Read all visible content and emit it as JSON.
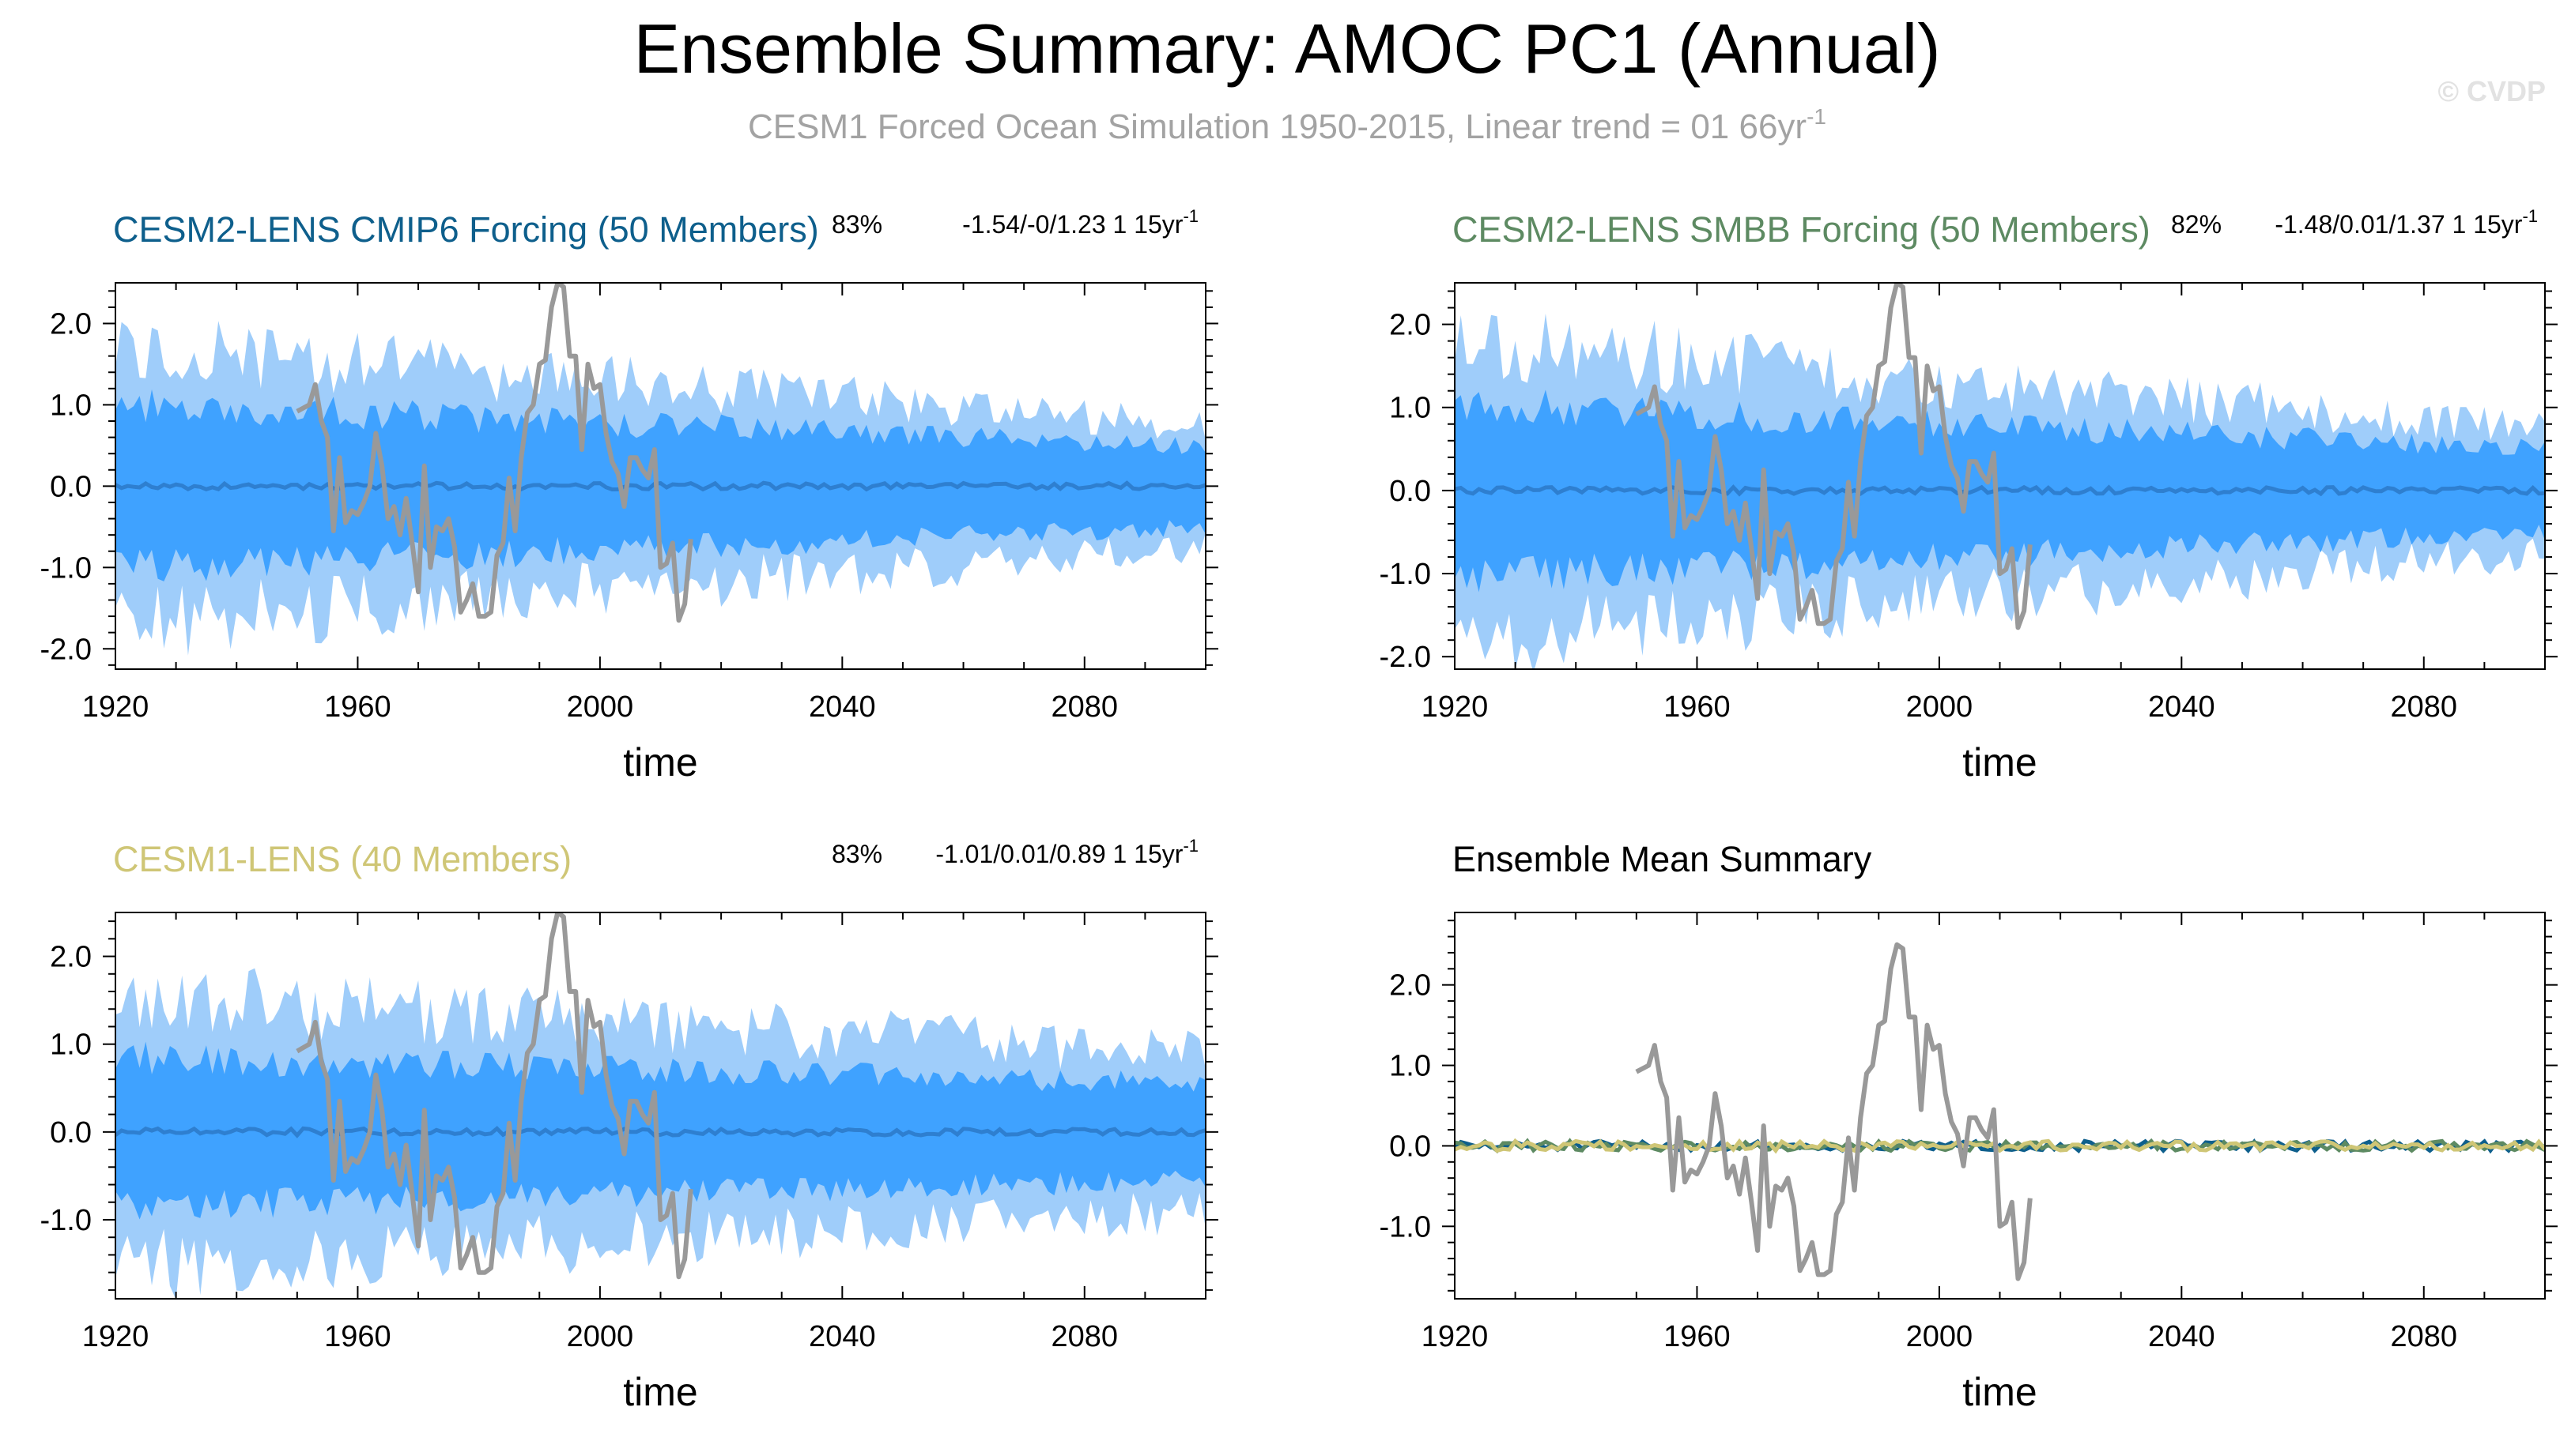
{
  "title": "Ensemble Summary: AMOC PC1 (Annual)",
  "subtitle": "CESM1 Forced Ocean Simulation 1950-2015, Linear trend = 01 66yr",
  "subtitle_sup": "-1",
  "watermark": "© CVDP",
  "colors": {
    "outer_band": "#9fcdfa",
    "inner_band": "#3fa2ff",
    "ens_mean": "#2e7fd0",
    "obs": "#999999",
    "cmip6": "#0e5f8c",
    "smbb": "#5d8a62",
    "cesm1": "#cfc676",
    "frame": "#000000"
  },
  "chart_data": [
    {
      "id": "panel-cmip6",
      "type": "area",
      "title": "CESM2-LENS CMIP6 Forcing (50 Members)",
      "title_color": "#0e5f8c",
      "pct": "83%",
      "stats": "-1.54/-0/1.23 1 15yr",
      "stats_sup": "-1",
      "xlabel": "time",
      "xlim": [
        1920,
        2100
      ],
      "ylim": [
        -2.25,
        2.5
      ],
      "xticks": [
        1920,
        1960,
        2000,
        2040,
        2080
      ],
      "yticks": [
        -2.0,
        -1.0,
        0.0,
        1.0,
        2.0
      ],
      "ytick_labels": [
        "-2.0",
        "-1.0",
        "0.0",
        "1.0",
        "2.0"
      ],
      "outer_start": 1.7,
      "outer_end": 0.75,
      "inner_start": 1.0,
      "inner_end": 0.5,
      "seed": 11
    },
    {
      "id": "panel-smbb",
      "type": "area",
      "title": "CESM2-LENS SMBB Forcing (50 Members)",
      "title_color": "#5d8a62",
      "pct": "82%",
      "stats": "-1.48/0.01/1.37 1 15yr",
      "stats_sup": "-1",
      "xlabel": "time",
      "xlim": [
        1920,
        2100
      ],
      "ylim": [
        -2.15,
        2.5
      ],
      "xticks": [
        1920,
        1960,
        2000,
        2040,
        2080
      ],
      "yticks": [
        -2.0,
        -1.0,
        0.0,
        1.0,
        2.0
      ],
      "ytick_labels": [
        "-2.0",
        "-1.0",
        "0.0",
        "1.0",
        "2.0"
      ],
      "outer_start": 1.8,
      "outer_end": 0.75,
      "inner_start": 1.05,
      "inner_end": 0.5,
      "seed": 23
    },
    {
      "id": "panel-cesm1",
      "type": "area",
      "title": "CESM1-LENS (40 Members)",
      "title_color": "#cfc676",
      "pct": "83%",
      "stats": "-1.01/0.01/0.89 1 15yr",
      "stats_sup": "-1",
      "xlabel": "time",
      "xlim": [
        1920,
        2100
      ],
      "ylim": [
        -1.9,
        2.5
      ],
      "xticks": [
        1920,
        1960,
        2000,
        2040,
        2080
      ],
      "yticks": [
        -1.0,
        0.0,
        1.0,
        2.0
      ],
      "ytick_labels": [
        "-1.0",
        "0.0",
        "1.0",
        "2.0"
      ],
      "outer_start": 1.55,
      "outer_end": 0.9,
      "inner_start": 0.85,
      "inner_end": 0.55,
      "seed": 37
    },
    {
      "id": "panel-mean",
      "type": "line",
      "title": "Ensemble Mean Summary",
      "title_color": "#000000",
      "xlabel": "time",
      "xlim": [
        1920,
        2100
      ],
      "ylim": [
        -1.9,
        2.9
      ],
      "xticks": [
        1920,
        1960,
        2000,
        2040,
        2080
      ],
      "yticks": [
        -1.0,
        0.0,
        1.0,
        2.0
      ],
      "ytick_labels": [
        "-1.0",
        "0.0",
        "1.0",
        "2.0"
      ],
      "series_names": [
        "CESM2-LENS CMIP6 Forcing",
        "CESM2-LENS SMBB Forcing",
        "CESM1-LENS"
      ],
      "seed": 51
    }
  ],
  "obs_series": {
    "name": "CESM1 Forced Ocean Simulation",
    "x": [
      1950,
      1952,
      1953,
      1954,
      1955,
      1956,
      1957,
      1958,
      1959,
      1960,
      1961,
      1962,
      1963,
      1964,
      1965,
      1966,
      1967,
      1968,
      1969,
      1970,
      1971,
      1972,
      1973,
      1974,
      1975,
      1976,
      1977,
      1978,
      1979,
      1980,
      1981,
      1982,
      1983,
      1984,
      1985,
      1986,
      1987,
      1988,
      1989,
      1990,
      1991,
      1992,
      1993,
      1994,
      1995,
      1996,
      1997,
      1998,
      1999,
      2000,
      2001,
      2002,
      2003,
      2004,
      2005,
      2006,
      2007,
      2008,
      2009,
      2010,
      2011,
      2012,
      2013,
      2014,
      2015
    ],
    "y": [
      0.92,
      1.0,
      1.25,
      0.8,
      0.6,
      -0.55,
      0.35,
      -0.45,
      -0.3,
      -0.35,
      -0.2,
      0.0,
      0.65,
      0.25,
      -0.4,
      -0.25,
      -0.6,
      -0.15,
      -0.7,
      -1.3,
      0.25,
      -1.0,
      -0.5,
      -0.55,
      -0.4,
      -0.75,
      -1.55,
      -1.4,
      -1.2,
      -1.6,
      -1.6,
      -1.55,
      -0.85,
      -0.7,
      0.1,
      -0.55,
      0.35,
      0.9,
      1.0,
      1.5,
      1.55,
      2.2,
      2.5,
      2.45,
      1.6,
      1.6,
      0.45,
      1.5,
      1.2,
      1.25,
      0.65,
      0.3,
      0.15,
      -0.25,
      0.35,
      0.35,
      0.2,
      0.1,
      0.45,
      -1.0,
      -0.95,
      -0.7,
      -1.65,
      -1.45,
      -0.65
    ]
  }
}
